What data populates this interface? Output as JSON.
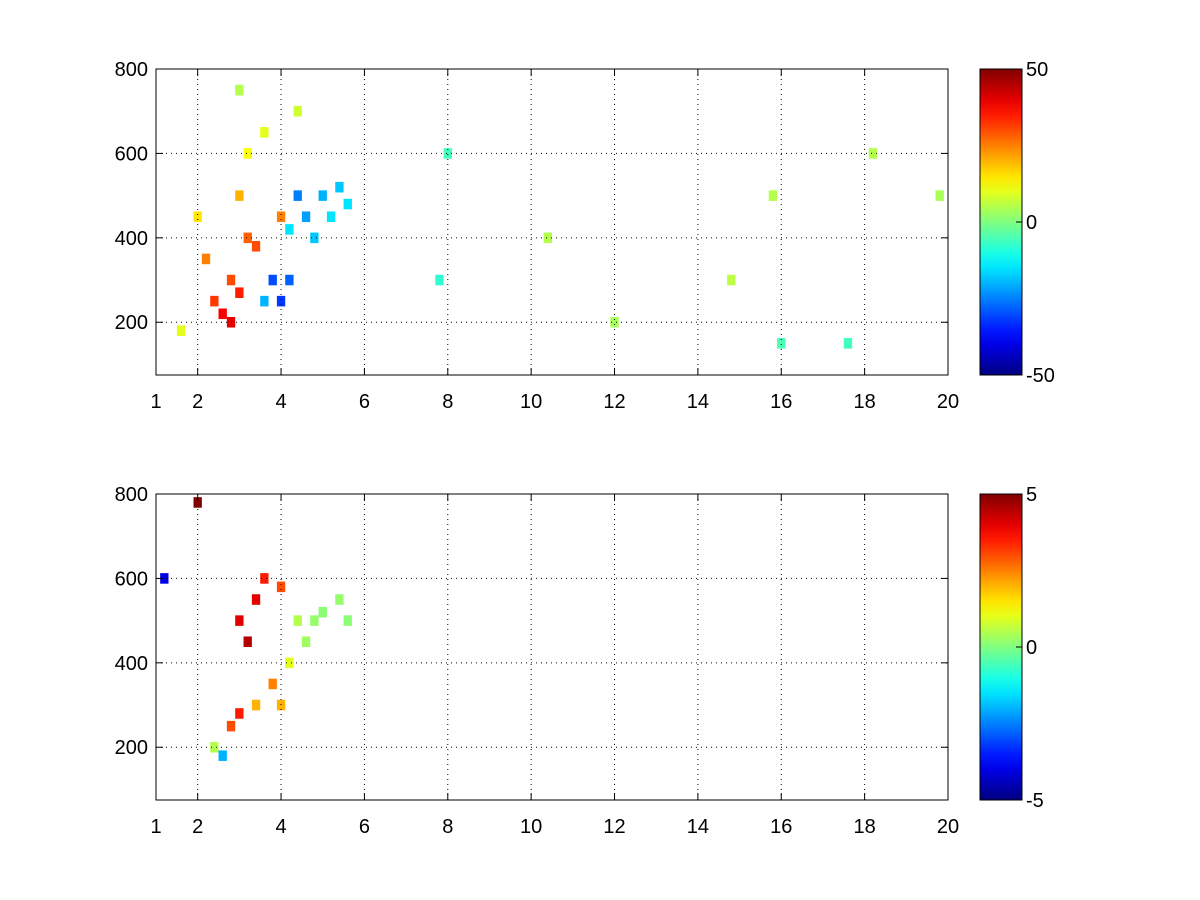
{
  "chart_data": [
    {
      "type": "heatmap",
      "title": "",
      "xlabel": "",
      "ylabel": "",
      "xlim": [
        1,
        20
      ],
      "ylim": [
        75,
        800
      ],
      "xticks": [
        1,
        2,
        4,
        6,
        8,
        10,
        12,
        14,
        16,
        18,
        20
      ],
      "xtick_labels": [
        "1",
        "2",
        "4",
        "6",
        "8",
        "10",
        "12",
        "14",
        "16",
        "18",
        "20"
      ],
      "yticks": [
        200,
        400,
        600,
        800
      ],
      "ytick_labels": [
        "200",
        "400",
        "600",
        "800"
      ],
      "grid": true,
      "colormap": "jet",
      "colorbar": {
        "range": [
          -50,
          50
        ],
        "ticks": [
          -50,
          0,
          50
        ],
        "tick_labels": [
          "-50",
          "0",
          "50"
        ]
      },
      "cells": [
        {
          "x": 1.6,
          "y": 180,
          "v": 10
        },
        {
          "x": 2.0,
          "y": 450,
          "v": 15
        },
        {
          "x": 2.2,
          "y": 350,
          "v": 25
        },
        {
          "x": 2.4,
          "y": 250,
          "v": 32
        },
        {
          "x": 2.6,
          "y": 220,
          "v": 38
        },
        {
          "x": 2.8,
          "y": 200,
          "v": 40
        },
        {
          "x": 2.8,
          "y": 300,
          "v": 30
        },
        {
          "x": 3.0,
          "y": 270,
          "v": 35
        },
        {
          "x": 3.0,
          "y": 500,
          "v": 20
        },
        {
          "x": 3.2,
          "y": 400,
          "v": 28
        },
        {
          "x": 3.4,
          "y": 380,
          "v": 30
        },
        {
          "x": 3.2,
          "y": 600,
          "v": 12
        },
        {
          "x": 3.6,
          "y": 650,
          "v": 10
        },
        {
          "x": 3.6,
          "y": 250,
          "v": -20
        },
        {
          "x": 3.8,
          "y": 300,
          "v": -30
        },
        {
          "x": 4.0,
          "y": 250,
          "v": -32
        },
        {
          "x": 4.0,
          "y": 450,
          "v": 25
        },
        {
          "x": 4.2,
          "y": 420,
          "v": -15
        },
        {
          "x": 4.2,
          "y": 300,
          "v": -28
        },
        {
          "x": 4.4,
          "y": 500,
          "v": -25
        },
        {
          "x": 4.6,
          "y": 450,
          "v": -22
        },
        {
          "x": 4.8,
          "y": 400,
          "v": -18
        },
        {
          "x": 5.0,
          "y": 500,
          "v": -20
        },
        {
          "x": 5.2,
          "y": 450,
          "v": -15
        },
        {
          "x": 5.4,
          "y": 520,
          "v": -18
        },
        {
          "x": 5.6,
          "y": 480,
          "v": -15
        },
        {
          "x": 4.4,
          "y": 700,
          "v": 8
        },
        {
          "x": 3.0,
          "y": 750,
          "v": 5
        },
        {
          "x": 7.8,
          "y": 300,
          "v": -8
        },
        {
          "x": 8.0,
          "y": 600,
          "v": -6
        },
        {
          "x": 10.4,
          "y": 400,
          "v": 5
        },
        {
          "x": 12.0,
          "y": 200,
          "v": 4
        },
        {
          "x": 14.8,
          "y": 300,
          "v": 6
        },
        {
          "x": 15.8,
          "y": 500,
          "v": 5
        },
        {
          "x": 16.0,
          "y": 150,
          "v": -5
        },
        {
          "x": 17.6,
          "y": 150,
          "v": -6
        },
        {
          "x": 18.2,
          "y": 600,
          "v": 5
        },
        {
          "x": 19.8,
          "y": 500,
          "v": 4
        }
      ]
    },
    {
      "type": "heatmap",
      "title": "",
      "xlabel": "",
      "ylabel": "",
      "xlim": [
        1,
        20
      ],
      "ylim": [
        75,
        800
      ],
      "xticks": [
        1,
        2,
        4,
        6,
        8,
        10,
        12,
        14,
        16,
        18,
        20
      ],
      "xtick_labels": [
        "1",
        "2",
        "4",
        "6",
        "8",
        "10",
        "12",
        "14",
        "16",
        "18",
        "20"
      ],
      "yticks": [
        200,
        400,
        600,
        800
      ],
      "ytick_labels": [
        "200",
        "400",
        "600",
        "800"
      ],
      "grid": true,
      "colormap": "jet",
      "colorbar": {
        "range": [
          -5,
          5
        ],
        "ticks": [
          -5,
          0,
          5
        ],
        "tick_labels": [
          "-5",
          "0",
          "5"
        ]
      },
      "cells": [
        {
          "x": 2.4,
          "y": 200,
          "v": 0.5
        },
        {
          "x": 2.6,
          "y": 180,
          "v": -2
        },
        {
          "x": 2.8,
          "y": 250,
          "v": 3
        },
        {
          "x": 3.0,
          "y": 280,
          "v": 3.5
        },
        {
          "x": 3.0,
          "y": 500,
          "v": 4
        },
        {
          "x": 3.2,
          "y": 450,
          "v": 4.5
        },
        {
          "x": 3.4,
          "y": 550,
          "v": 4
        },
        {
          "x": 3.4,
          "y": 300,
          "v": 2
        },
        {
          "x": 3.6,
          "y": 600,
          "v": 3.5
        },
        {
          "x": 3.8,
          "y": 350,
          "v": 2.5
        },
        {
          "x": 4.0,
          "y": 300,
          "v": 2
        },
        {
          "x": 4.0,
          "y": 580,
          "v": 3
        },
        {
          "x": 4.2,
          "y": 400,
          "v": 1
        },
        {
          "x": 4.4,
          "y": 500,
          "v": 0.5
        },
        {
          "x": 4.6,
          "y": 450,
          "v": 0.3
        },
        {
          "x": 4.8,
          "y": 500,
          "v": 0.2
        },
        {
          "x": 5.0,
          "y": 520,
          "v": 0.1
        },
        {
          "x": 5.4,
          "y": 550,
          "v": 0.2
        },
        {
          "x": 5.6,
          "y": 500,
          "v": 0.1
        },
        {
          "x": 2.0,
          "y": 780,
          "v": 5
        },
        {
          "x": 1.2,
          "y": 600,
          "v": -4
        }
      ]
    }
  ]
}
